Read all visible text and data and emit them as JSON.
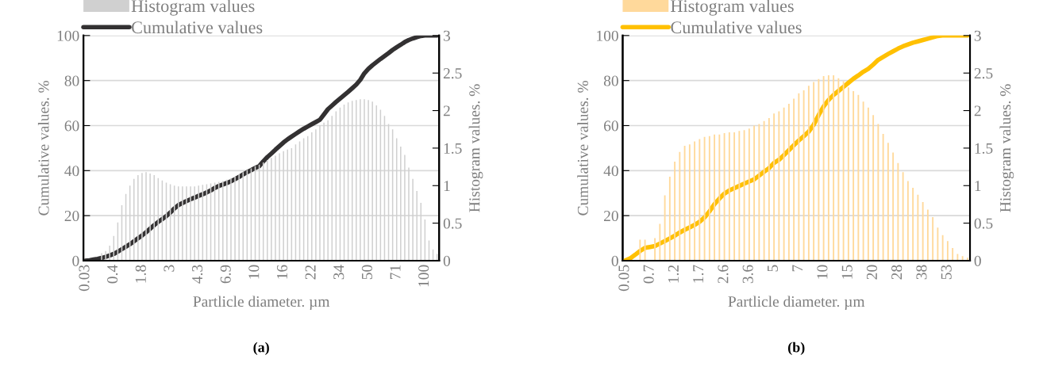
{
  "chart_data": [
    {
      "type": "bar",
      "xlabel": "Partlicle diameter. µm",
      "ylabel": "Cumulative values. %",
      "y2label": "Histogram values. %",
      "annotations": [
        "(a)"
      ],
      "categories": [
        "0.03",
        null,
        null,
        null,
        null,
        null,
        null,
        "0.4",
        null,
        null,
        null,
        null,
        null,
        null,
        "1.8",
        null,
        null,
        null,
        null,
        null,
        null,
        "3",
        null,
        null,
        null,
        null,
        null,
        null,
        "4.3",
        null,
        null,
        null,
        null,
        null,
        null,
        "6.9",
        null,
        null,
        null,
        null,
        null,
        null,
        "10",
        null,
        null,
        null,
        null,
        null,
        null,
        "16",
        null,
        null,
        null,
        null,
        null,
        null,
        "22",
        null,
        null,
        null,
        null,
        null,
        null,
        "34",
        null,
        null,
        null,
        null,
        null,
        null,
        "50",
        null,
        null,
        null,
        null,
        null,
        null,
        "71",
        null,
        null,
        null,
        null,
        null,
        null,
        "100",
        null,
        null,
        null
      ],
      "series": [
        {
          "name": "Histogram values",
          "axis": "y2",
          "color": "#d0d0d0",
          "values": [
            0,
            0,
            0,
            0,
            0.1,
            0.13,
            0.2,
            0.33,
            0.51,
            0.74,
            0.89,
            1.0,
            1.09,
            1.14,
            1.17,
            1.18,
            1.16,
            1.14,
            1.1,
            1.07,
            1.04,
            1.02,
            1.0,
            0.99,
            0.99,
            0.99,
            0.99,
            0.99,
            1.0,
            1.01,
            1.02,
            1.03,
            1.04,
            1.05,
            1.06,
            1.08,
            1.1,
            1.12,
            1.15,
            1.18,
            1.21,
            1.23,
            1.26,
            1.28,
            1.31,
            1.34,
            1.37,
            1.4,
            1.43,
            1.46,
            1.48,
            1.5,
            1.55,
            1.59,
            1.63,
            1.66,
            1.71,
            1.75,
            1.8,
            1.84,
            1.87,
            1.93,
            1.99,
            2.04,
            2.08,
            2.11,
            2.13,
            2.14,
            2.15,
            2.15,
            2.14,
            2.12,
            2.07,
            2.01,
            1.93,
            1.82,
            1.75,
            1.63,
            1.52,
            1.41,
            1.24,
            1.09,
            0.93,
            0.77,
            0.55,
            0.27,
            0.15,
            0.09
          ]
        },
        {
          "name": "Cumulative values",
          "type": "line",
          "color": "#333132",
          "values": [
            0,
            0.2,
            0.5,
            0.8,
            1.2,
            1.7,
            2.3,
            3.0,
            4.0,
            5.1,
            6.2,
            7.3,
            8.6,
            9.9,
            11.2,
            12.6,
            14.2,
            15.8,
            17.2,
            18.5,
            19.8,
            21.4,
            23.2,
            24.7,
            25.6,
            26.5,
            27.3,
            28.0,
            28.8,
            29.5,
            30.3,
            31.2,
            32.3,
            33.2,
            33.8,
            34.5,
            35.3,
            36.2,
            37.2,
            38.3,
            39.3,
            40.2,
            41.2,
            42.0,
            44.1,
            46.0,
            47.6,
            49.3,
            50.9,
            52.5,
            53.9,
            55.1,
            56.3,
            57.5,
            58.6,
            59.6,
            60.6,
            61.6,
            62.6,
            64.9,
            67.3,
            68.9,
            70.5,
            72.0,
            73.5,
            75.0,
            76.6,
            78.2,
            80.3,
            83.2,
            85.2,
            86.8,
            88.2,
            89.6,
            90.9,
            92.2,
            93.6,
            94.8,
            95.9,
            97.1,
            98.0,
            98.7,
            99.3,
            99.8,
            100,
            100,
            100,
            100
          ]
        }
      ],
      "ylim": [
        0,
        100
      ],
      "yticks": [
        0,
        20,
        40,
        60,
        80,
        100
      ],
      "y2lim": [
        0,
        3
      ],
      "y2ticks": [
        0,
        0.5,
        1,
        1.5,
        2,
        2.5,
        3
      ],
      "grid": "y",
      "legend": "top left",
      "marker": "none",
      "line_style": "solid"
    },
    {
      "type": "bar",
      "xlabel": "Partlicle diameter. µm",
      "ylabel": "Cumulative values. %",
      "y2label": "Histogram values. %",
      "annotations": [
        "(b)"
      ],
      "categories": [
        "0.05",
        null,
        null,
        null,
        null,
        "0.7",
        null,
        null,
        null,
        null,
        "1.2",
        null,
        null,
        null,
        null,
        "1.7",
        null,
        null,
        null,
        null,
        "2.6",
        null,
        null,
        null,
        null,
        "3.6",
        null,
        null,
        null,
        null,
        "5",
        null,
        null,
        null,
        null,
        "7",
        null,
        null,
        null,
        null,
        "10",
        null,
        null,
        null,
        null,
        "15",
        null,
        null,
        null,
        null,
        "20",
        null,
        null,
        null,
        null,
        "28",
        null,
        null,
        null,
        null,
        "38",
        null,
        null,
        null,
        null,
        "53",
        null,
        null,
        null,
        null
      ],
      "series": [
        {
          "name": "Histogram values",
          "axis": "y2",
          "color": "#ffd99b",
          "values": [
            0,
            0,
            0,
            0.28,
            0.28,
            0,
            0.3,
            0.49,
            0.87,
            1.12,
            1.32,
            1.45,
            1.53,
            1.55,
            1.59,
            1.62,
            1.65,
            1.66,
            1.68,
            1.68,
            1.7,
            1.71,
            1.71,
            1.73,
            1.74,
            1.76,
            1.8,
            1.82,
            1.86,
            1.9,
            1.96,
            1.99,
            2.04,
            2.09,
            2.16,
            2.23,
            2.27,
            2.33,
            2.38,
            2.42,
            2.46,
            2.47,
            2.47,
            2.43,
            2.39,
            2.31,
            2.26,
            2.21,
            2.12,
            2.04,
            1.94,
            1.82,
            1.69,
            1.57,
            1.44,
            1.3,
            1.18,
            1.06,
            0.97,
            0.88,
            0.78,
            0.68,
            0.58,
            0.44,
            0.34,
            0.26,
            0.17,
            0.09,
            0.06,
            0.04
          ]
        },
        {
          "name": "Cumulative values",
          "type": "line",
          "color": "#ffc000",
          "values": [
            0.1,
            1.0,
            2.6,
            4.3,
            5.7,
            6.1,
            6.5,
            7.6,
            8.7,
            9.9,
            11.1,
            12.5,
            13.7,
            14.8,
            15.9,
            17.3,
            19.2,
            21.9,
            25.1,
            27.6,
            29.8,
            31.2,
            32.2,
            33.2,
            34.2,
            35.2,
            36.1,
            37.8,
            39.5,
            41.1,
            43.4,
            44.8,
            46.9,
            49.1,
            51.3,
            53.4,
            55.3,
            57.3,
            60.4,
            64.7,
            68.5,
            71.4,
            73.6,
            75.4,
            77.2,
            79.0,
            80.8,
            82.3,
            83.9,
            85.2,
            87.1,
            89.2,
            90.5,
            91.8,
            93.0,
            94.2,
            95.2,
            96.0,
            96.8,
            97.4,
            98.0,
            98.6,
            99.2,
            99.8,
            100,
            100,
            100,
            100,
            100,
            100
          ]
        }
      ],
      "ylim": [
        0,
        100
      ],
      "yticks": [
        0,
        20,
        40,
        60,
        80,
        100
      ],
      "y2lim": [
        0,
        3
      ],
      "y2ticks": [
        0,
        0.5,
        1,
        1.5,
        2,
        2.5,
        3
      ],
      "grid": "y",
      "legend": "top left",
      "marker": "none",
      "line_style": "solid"
    }
  ]
}
